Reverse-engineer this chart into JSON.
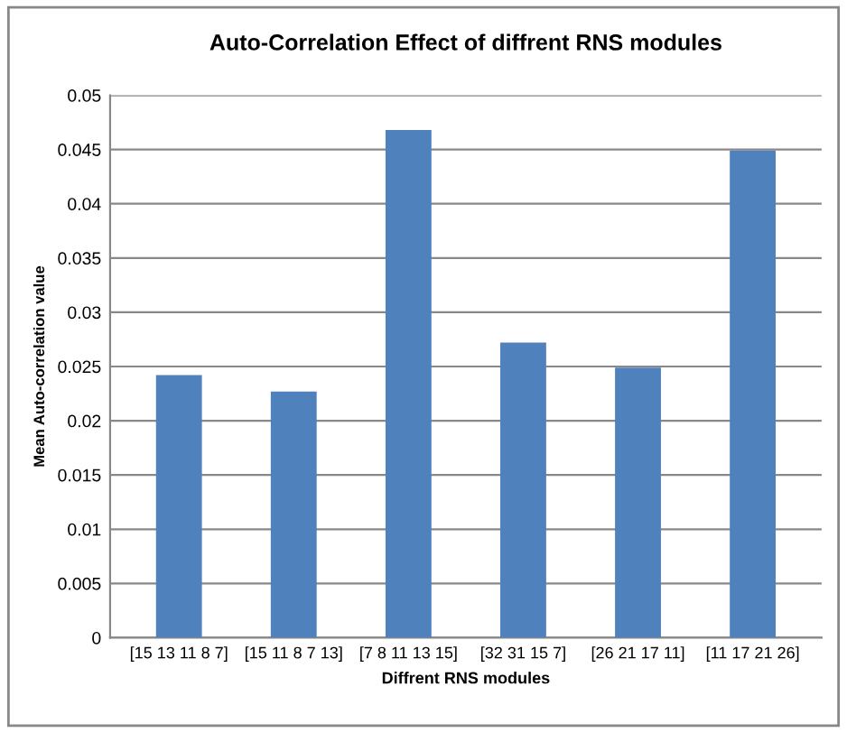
{
  "chart_data": {
    "type": "bar",
    "title": "Auto-Correlation Effect of diffrent RNS modules",
    "xlabel": "Diffrent RNS modules",
    "ylabel": "Mean Auto-correlation value",
    "categories": [
      "[15 13 11 8 7]",
      "[15 11 8 7 13]",
      "[7 8 11 13 15]",
      "[32 31 15 7]",
      "[26 21 17 11]",
      "[11 17 21 26]"
    ],
    "values": [
      0.0242,
      0.0227,
      0.0468,
      0.0272,
      0.0249,
      0.0449
    ],
    "color": "#4f81bd",
    "ylim": [
      0,
      0.05
    ],
    "yticks": [
      0,
      0.005,
      0.01,
      0.015,
      0.02,
      0.025,
      0.03,
      0.035,
      0.04,
      0.045,
      0.05
    ],
    "grid": "y"
  }
}
